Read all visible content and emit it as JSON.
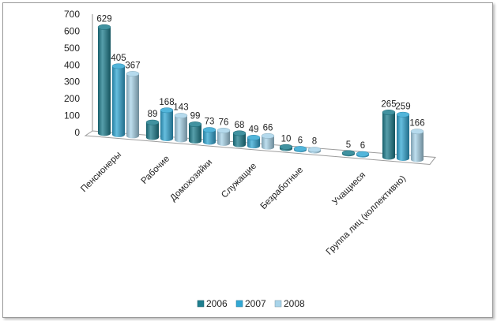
{
  "chart_data": {
    "type": "bar",
    "title": "",
    "xlabel": "",
    "ylabel": "",
    "ylim": [
      0,
      700
    ],
    "yticks": [
      "0",
      "100",
      "200",
      "300",
      "400",
      "500",
      "600",
      "700"
    ],
    "categories": [
      "Пенсионеры",
      "Рабочие",
      "Домохозяйки",
      "Служащие",
      "Безработные",
      "Учащиеся",
      "Группа лиц (коллективно)"
    ],
    "series": [
      {
        "name": "2006",
        "color": "#1f7f8f",
        "values": [
          629,
          89,
          99,
          68,
          10,
          5,
          265
        ]
      },
      {
        "name": "2007",
        "color": "#33a8d4",
        "values": [
          405,
          168,
          73,
          49,
          6,
          6,
          259
        ]
      },
      {
        "name": "2008",
        "color": "#a8d4ea",
        "values": [
          367,
          143,
          76,
          66,
          8,
          null,
          166
        ]
      }
    ],
    "grid": false,
    "legend_position": "bottom"
  }
}
